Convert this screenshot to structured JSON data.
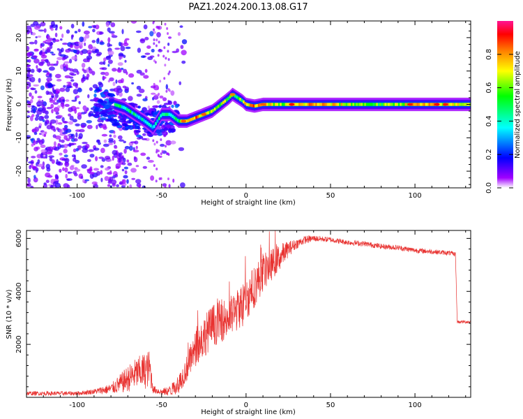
{
  "title": "PAZ1.2024.200.13.08.G17",
  "chart_data": [
    {
      "type": "heatmap",
      "xlabel": "Height of straight line (km)",
      "ylabel": "Frequency (Hz)",
      "xlim": [
        -130,
        133
      ],
      "ylim": [
        -25,
        25
      ],
      "xticks": [
        -100,
        -50,
        0,
        50,
        100
      ],
      "yticks": [
        -20,
        -10,
        0,
        10,
        20
      ],
      "colorbar": {
        "label": "Normalized spectral amplitude",
        "range": [
          0,
          1
        ],
        "ticks": [
          0.0,
          0.2,
          0.4,
          0.6,
          0.8
        ],
        "colormap": [
          "#ffffff",
          "#a000ff",
          "#0000ff",
          "#00ffff",
          "#00ff00",
          "#ffff00",
          "#ff8000",
          "#ff0000",
          "#ff1493"
        ]
      },
      "ridge": {
        "x": [
          -78,
          -72,
          -66,
          -60,
          -55,
          -50,
          -45,
          -40,
          -35,
          -30,
          -25,
          -20,
          -15,
          -10,
          -8,
          -5,
          -2,
          0,
          5,
          10,
          20,
          40,
          60,
          80,
          100,
          120,
          133
        ],
        "freq": [
          0,
          -1,
          -3,
          -5,
          -7,
          -3,
          -3,
          -5,
          -5,
          -4,
          -3,
          -2,
          0,
          2,
          3,
          2,
          1,
          0,
          -0.5,
          0,
          0,
          0,
          0,
          0,
          0,
          0,
          0
        ],
        "amplitude": [
          0.4,
          0.45,
          0.45,
          0.4,
          0.35,
          0.4,
          0.45,
          0.55,
          0.75,
          0.8,
          0.75,
          0.7,
          0.65,
          0.55,
          0.5,
          0.5,
          0.6,
          0.7,
          0.8,
          0.75,
          0.6,
          0.8,
          0.65,
          0.55,
          0.75,
          0.7,
          0.7
        ]
      }
    },
    {
      "type": "line",
      "xlabel": "Height of straight line (km)",
      "ylabel": "SNR (10 * v/v)",
      "xlim": [
        -130,
        133
      ],
      "ylim": [
        0,
        6300
      ],
      "xticks": [
        -100,
        -50,
        0,
        50,
        100
      ],
      "yticks": [
        2000,
        4000,
        6000
      ],
      "color": "#e8312f",
      "series": [
        {
          "x": [
            -130,
            -100,
            -90,
            -80,
            -75,
            -70,
            -65,
            -60,
            -57,
            -55,
            -50,
            -45,
            -40,
            -35,
            -30,
            -25,
            -20,
            -15,
            -10,
            -5,
            0,
            5,
            10,
            15,
            20,
            25,
            30,
            35,
            40,
            50,
            60,
            70,
            80,
            90,
            100,
            110,
            120,
            124,
            125,
            128,
            133
          ],
          "values": [
            150,
            150,
            220,
            320,
            500,
            700,
            900,
            1000,
            1100,
            300,
            200,
            250,
            500,
            1100,
            1800,
            2300,
            2700,
            2900,
            3000,
            3300,
            3700,
            4200,
            4700,
            5000,
            5300,
            5600,
            5800,
            5950,
            6000,
            5950,
            5850,
            5800,
            5700,
            5650,
            5550,
            5500,
            5450,
            5400,
            2850,
            2850,
            2850
          ],
          "noise": [
            80,
            80,
            100,
            200,
            350,
            500,
            600,
            700,
            700,
            150,
            120,
            200,
            350,
            500,
            700,
            800,
            800,
            800,
            800,
            800,
            800,
            800,
            700,
            600,
            500,
            300,
            180,
            150,
            120,
            100,
            100,
            100,
            100,
            100,
            100,
            90,
            90,
            90,
            60,
            60,
            60
          ]
        }
      ]
    }
  ]
}
